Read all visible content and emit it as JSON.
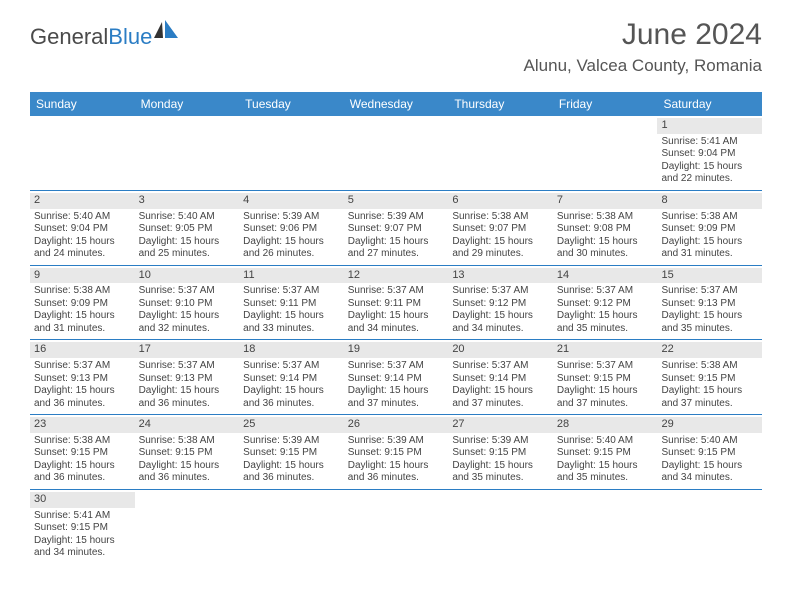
{
  "logo": {
    "text1": "General",
    "text2": "Blue"
  },
  "title": "June 2024",
  "location": "Alunu, Valcea County, Romania",
  "colors": {
    "header_bg": "#3a88c9",
    "daynum_bg": "#e8e8e8",
    "border": "#2b7dc4",
    "logo_blue": "#2b7dc4",
    "text": "#444444"
  },
  "day_names": [
    "Sunday",
    "Monday",
    "Tuesday",
    "Wednesday",
    "Thursday",
    "Friday",
    "Saturday"
  ],
  "weeks": [
    [
      null,
      null,
      null,
      null,
      null,
      null,
      {
        "n": "1",
        "sr": "5:41 AM",
        "ss": "9:04 PM",
        "dl": "15 hours and 22 minutes."
      }
    ],
    [
      {
        "n": "2",
        "sr": "5:40 AM",
        "ss": "9:04 PM",
        "dl": "15 hours and 24 minutes."
      },
      {
        "n": "3",
        "sr": "5:40 AM",
        "ss": "9:05 PM",
        "dl": "15 hours and 25 minutes."
      },
      {
        "n": "4",
        "sr": "5:39 AM",
        "ss": "9:06 PM",
        "dl": "15 hours and 26 minutes."
      },
      {
        "n": "5",
        "sr": "5:39 AM",
        "ss": "9:07 PM",
        "dl": "15 hours and 27 minutes."
      },
      {
        "n": "6",
        "sr": "5:38 AM",
        "ss": "9:07 PM",
        "dl": "15 hours and 29 minutes."
      },
      {
        "n": "7",
        "sr": "5:38 AM",
        "ss": "9:08 PM",
        "dl": "15 hours and 30 minutes."
      },
      {
        "n": "8",
        "sr": "5:38 AM",
        "ss": "9:09 PM",
        "dl": "15 hours and 31 minutes."
      }
    ],
    [
      {
        "n": "9",
        "sr": "5:38 AM",
        "ss": "9:09 PM",
        "dl": "15 hours and 31 minutes."
      },
      {
        "n": "10",
        "sr": "5:37 AM",
        "ss": "9:10 PM",
        "dl": "15 hours and 32 minutes."
      },
      {
        "n": "11",
        "sr": "5:37 AM",
        "ss": "9:11 PM",
        "dl": "15 hours and 33 minutes."
      },
      {
        "n": "12",
        "sr": "5:37 AM",
        "ss": "9:11 PM",
        "dl": "15 hours and 34 minutes."
      },
      {
        "n": "13",
        "sr": "5:37 AM",
        "ss": "9:12 PM",
        "dl": "15 hours and 34 minutes."
      },
      {
        "n": "14",
        "sr": "5:37 AM",
        "ss": "9:12 PM",
        "dl": "15 hours and 35 minutes."
      },
      {
        "n": "15",
        "sr": "5:37 AM",
        "ss": "9:13 PM",
        "dl": "15 hours and 35 minutes."
      }
    ],
    [
      {
        "n": "16",
        "sr": "5:37 AM",
        "ss": "9:13 PM",
        "dl": "15 hours and 36 minutes."
      },
      {
        "n": "17",
        "sr": "5:37 AM",
        "ss": "9:13 PM",
        "dl": "15 hours and 36 minutes."
      },
      {
        "n": "18",
        "sr": "5:37 AM",
        "ss": "9:14 PM",
        "dl": "15 hours and 36 minutes."
      },
      {
        "n": "19",
        "sr": "5:37 AM",
        "ss": "9:14 PM",
        "dl": "15 hours and 37 minutes."
      },
      {
        "n": "20",
        "sr": "5:37 AM",
        "ss": "9:14 PM",
        "dl": "15 hours and 37 minutes."
      },
      {
        "n": "21",
        "sr": "5:37 AM",
        "ss": "9:15 PM",
        "dl": "15 hours and 37 minutes."
      },
      {
        "n": "22",
        "sr": "5:38 AM",
        "ss": "9:15 PM",
        "dl": "15 hours and 37 minutes."
      }
    ],
    [
      {
        "n": "23",
        "sr": "5:38 AM",
        "ss": "9:15 PM",
        "dl": "15 hours and 36 minutes."
      },
      {
        "n": "24",
        "sr": "5:38 AM",
        "ss": "9:15 PM",
        "dl": "15 hours and 36 minutes."
      },
      {
        "n": "25",
        "sr": "5:39 AM",
        "ss": "9:15 PM",
        "dl": "15 hours and 36 minutes."
      },
      {
        "n": "26",
        "sr": "5:39 AM",
        "ss": "9:15 PM",
        "dl": "15 hours and 36 minutes."
      },
      {
        "n": "27",
        "sr": "5:39 AM",
        "ss": "9:15 PM",
        "dl": "15 hours and 35 minutes."
      },
      {
        "n": "28",
        "sr": "5:40 AM",
        "ss": "9:15 PM",
        "dl": "15 hours and 35 minutes."
      },
      {
        "n": "29",
        "sr": "5:40 AM",
        "ss": "9:15 PM",
        "dl": "15 hours and 34 minutes."
      }
    ],
    [
      {
        "n": "30",
        "sr": "5:41 AM",
        "ss": "9:15 PM",
        "dl": "15 hours and 34 minutes."
      },
      null,
      null,
      null,
      null,
      null,
      null
    ]
  ],
  "labels": {
    "sunrise": "Sunrise:",
    "sunset": "Sunset:",
    "daylight": "Daylight:"
  }
}
